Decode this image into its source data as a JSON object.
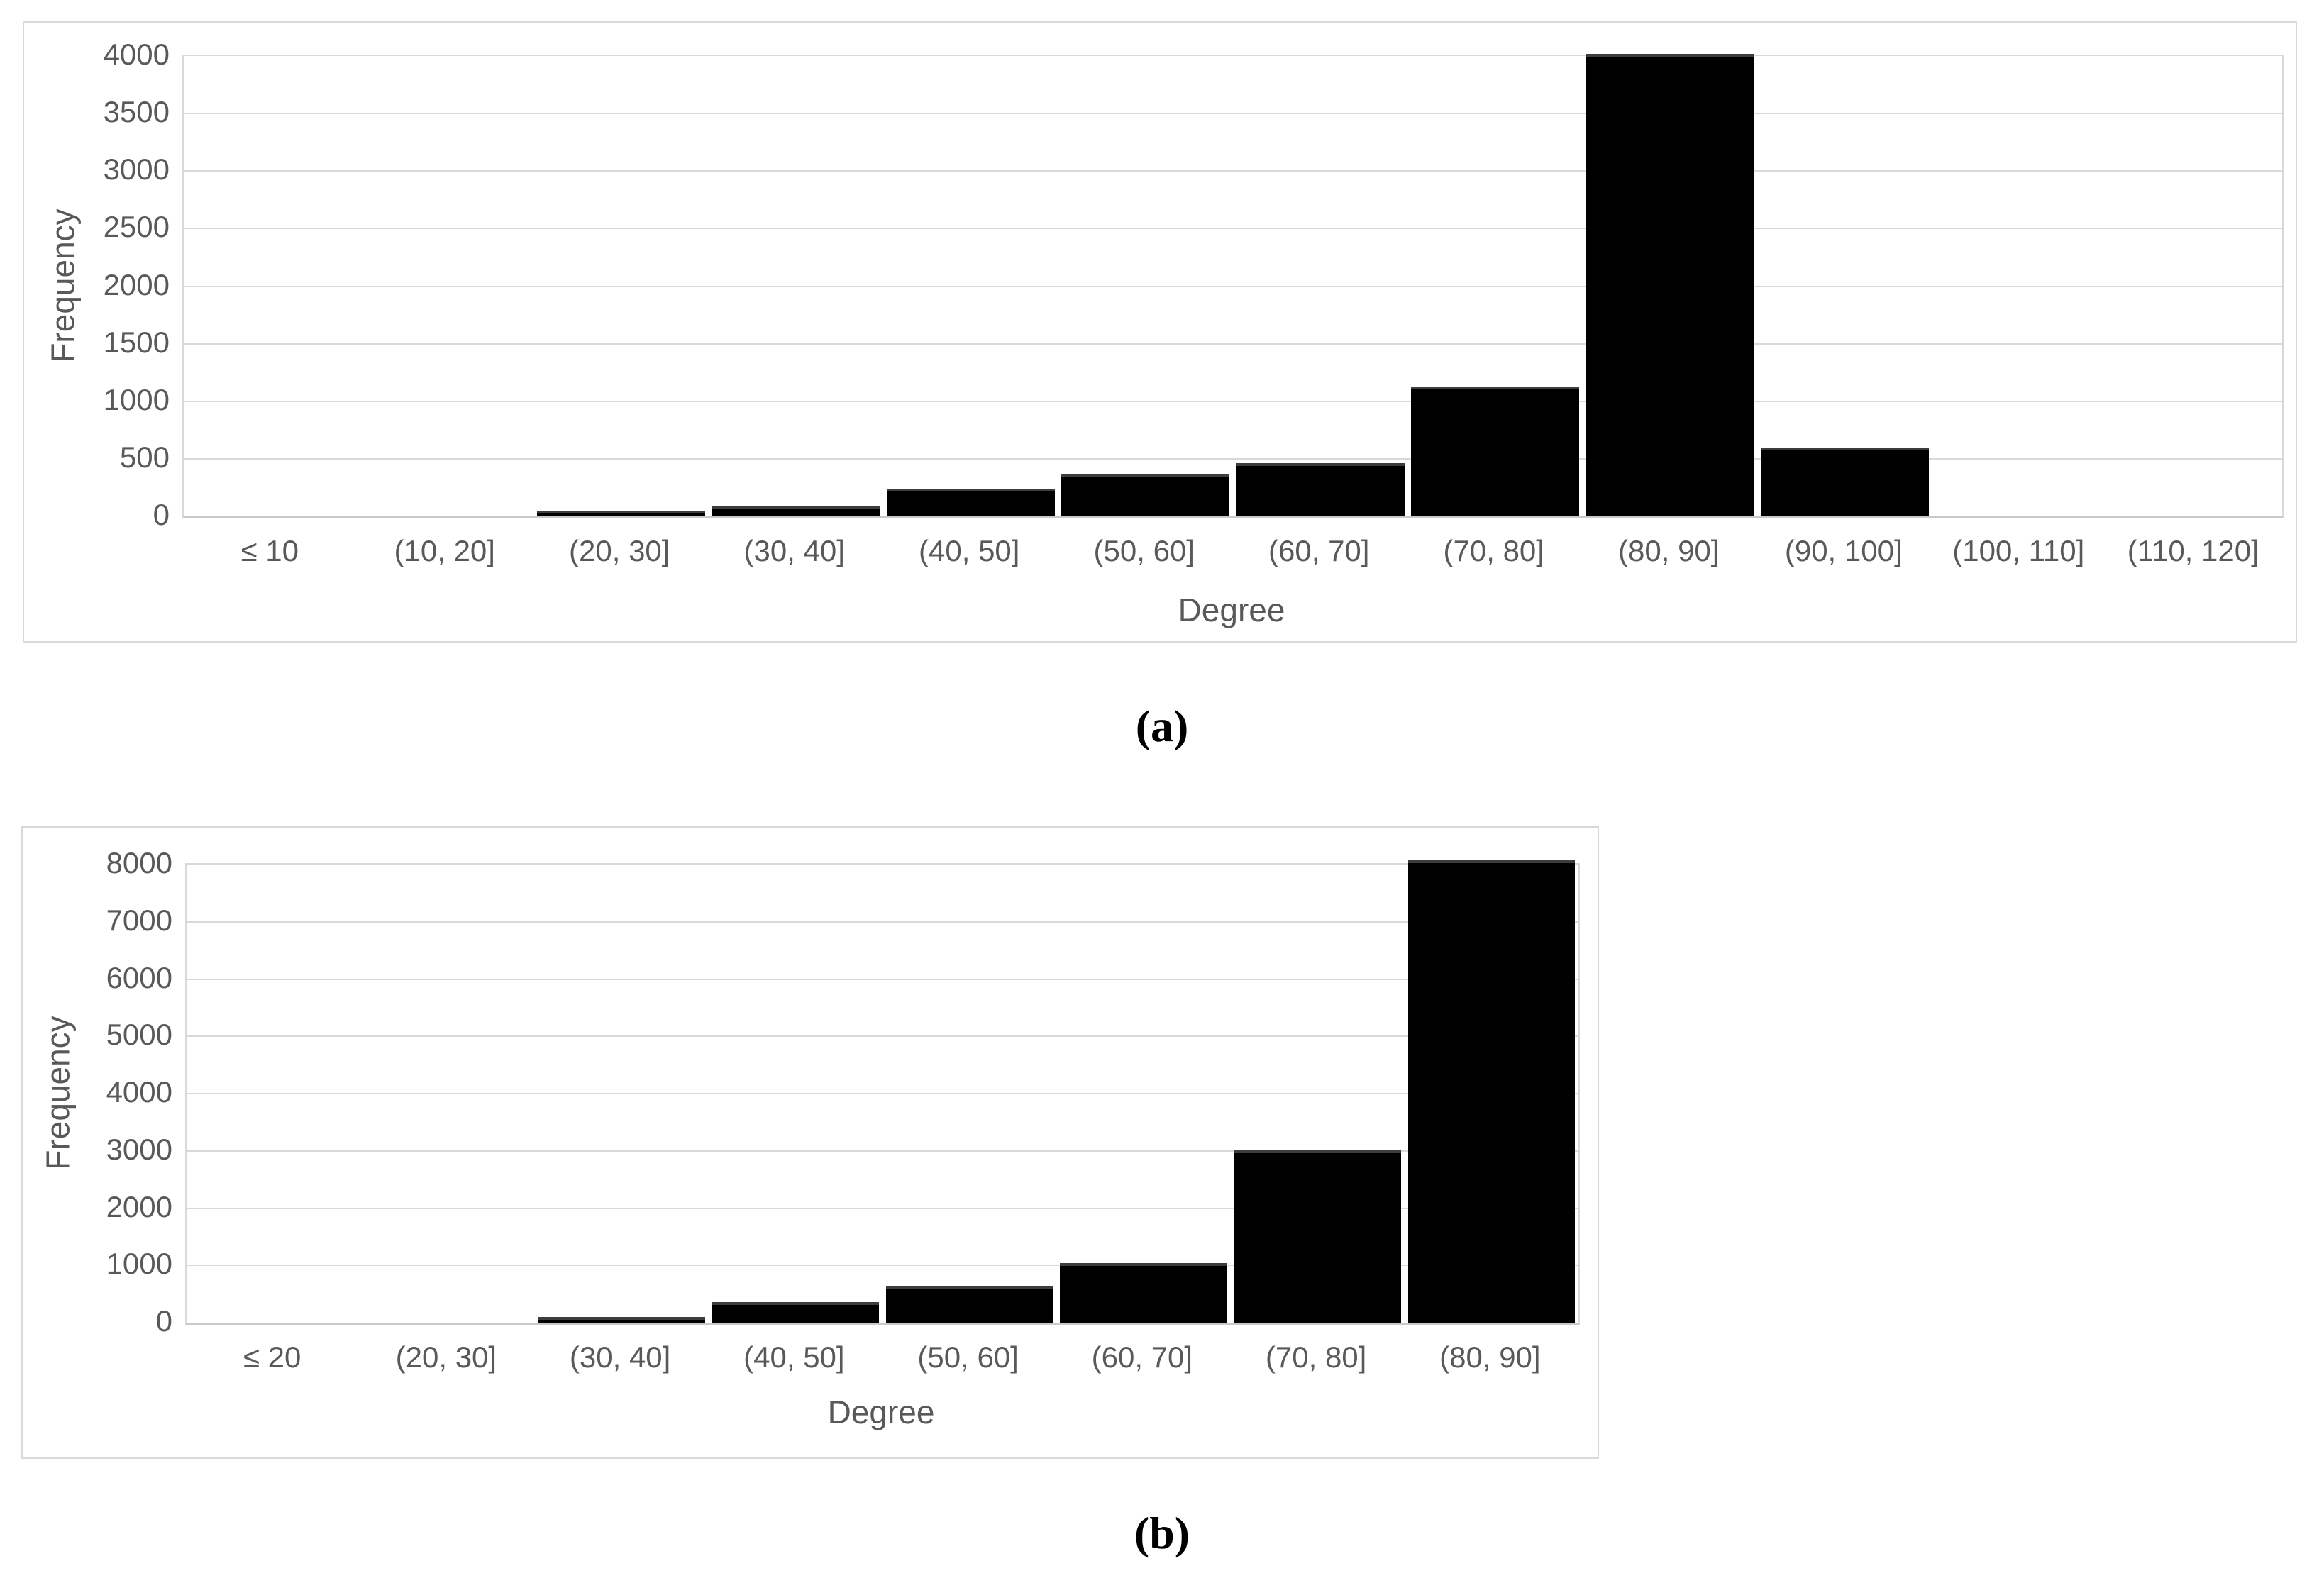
{
  "figure": {
    "captions": {
      "a": "(a)",
      "b": "(b)"
    }
  },
  "colors": {
    "bar": "#000000",
    "bar_edge": "#3d3d3d",
    "grid": "#d9d9d9",
    "text": "#595959",
    "caption": "#000000",
    "border": "#d9d9d9"
  },
  "chart_data": [
    {
      "panel": "a",
      "type": "bar",
      "caption": "(a)",
      "xlabel": "Degree",
      "ylabel": "Frequency",
      "categories": [
        "≤ 10",
        "(10, 20]",
        "(20, 30]",
        "(30, 40]",
        "(40, 50]",
        "(50, 60]",
        "(60, 70]",
        "(70, 80]",
        "(80, 90]",
        "(90, 100]",
        "(100, 110]",
        "(110, 120]"
      ],
      "values": [
        0,
        0,
        50,
        90,
        240,
        370,
        465,
        1130,
        4020,
        600,
        0,
        0
      ],
      "y_ticks": [
        0,
        500,
        1000,
        1500,
        2000,
        2500,
        3000,
        3500,
        4000
      ],
      "ylim": [
        0,
        4000
      ],
      "grid": true,
      "legend": "none"
    },
    {
      "panel": "b",
      "type": "bar",
      "caption": "(b)",
      "xlabel": "Degree",
      "ylabel": "Frequency",
      "categories": [
        "≤ 20",
        "(20, 30]",
        "(30, 40]",
        "(40, 50]",
        "(50, 60]",
        "(60, 70]",
        "(70, 80]",
        "(80, 90]"
      ],
      "values": [
        0,
        0,
        100,
        360,
        650,
        1040,
        3010,
        8070
      ],
      "y_ticks": [
        0,
        1000,
        2000,
        3000,
        4000,
        5000,
        6000,
        7000,
        8000
      ],
      "ylim": [
        0,
        8600
      ],
      "grid": true,
      "legend": "none"
    }
  ]
}
